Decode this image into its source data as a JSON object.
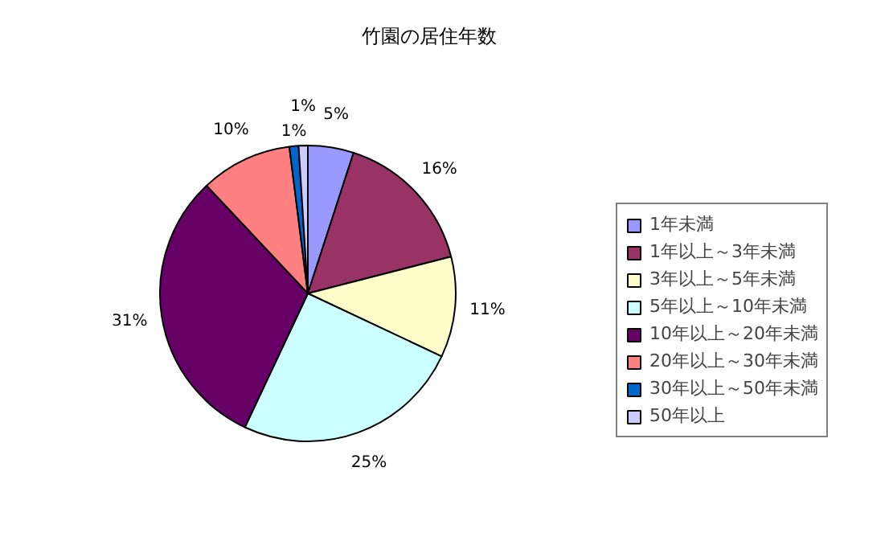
{
  "chart_data": {
    "type": "pie",
    "title": "竹園の居住年数",
    "categories": [
      "1年未満",
      "1年以上～3年未満",
      "3年以上～5年未満",
      "5年以上～10年未満",
      "10年以上～20年未満",
      "20年以上～30年未満",
      "30年以上～50年未満",
      "50年以上"
    ],
    "values": [
      5,
      16,
      11,
      25,
      31,
      10,
      1,
      1
    ],
    "value_labels": [
      "5%",
      "16%",
      "11%",
      "25%",
      "31%",
      "10%",
      "1%",
      "1%"
    ],
    "colors": [
      "#9999ff",
      "#993366",
      "#ffffcc",
      "#ccffff",
      "#660066",
      "#ff8080",
      "#0066cc",
      "#ccccff"
    ],
    "legend": "right"
  }
}
